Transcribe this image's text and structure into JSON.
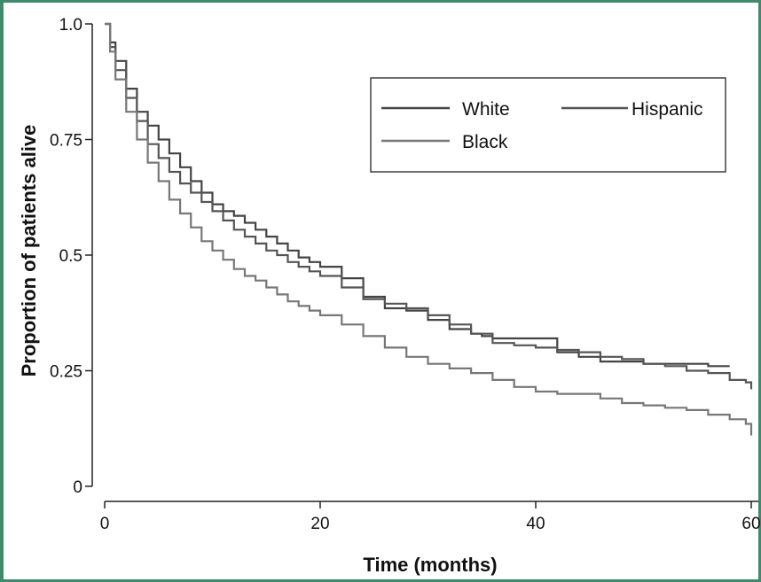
{
  "chart_data": {
    "type": "line",
    "step": true,
    "title": "",
    "xlabel": "Time (months)",
    "ylabel": "Proportion of patients alive",
    "xlim": [
      0,
      60
    ],
    "ylim": [
      0,
      1.0
    ],
    "xticks": [
      0,
      20,
      40,
      60
    ],
    "xtick_labels": [
      "0",
      "20",
      "40",
      "60"
    ],
    "yticks": [
      0,
      0.25,
      0.5,
      0.75,
      1.0
    ],
    "ytick_labels": [
      "0",
      "0.25",
      "0.5",
      "0.75",
      "1.0"
    ],
    "grid": false,
    "legend": {
      "position": "top-right",
      "columns": 2
    },
    "series": [
      {
        "name": "White",
        "color": "#444444",
        "x": [
          0,
          0.5,
          1,
          2,
          3,
          4,
          5,
          6,
          7,
          8,
          9,
          10,
          11,
          12,
          13,
          14,
          15,
          16,
          17,
          18,
          19,
          20,
          22,
          24,
          26,
          28,
          30,
          32,
          34,
          35,
          36,
          38,
          40,
          42,
          44,
          46,
          48,
          50,
          52,
          54,
          56,
          58
        ],
        "y": [
          1.0,
          0.96,
          0.92,
          0.86,
          0.81,
          0.78,
          0.75,
          0.72,
          0.69,
          0.66,
          0.635,
          0.61,
          0.595,
          0.585,
          0.57,
          0.555,
          0.54,
          0.525,
          0.51,
          0.495,
          0.485,
          0.475,
          0.45,
          0.41,
          0.385,
          0.38,
          0.36,
          0.34,
          0.33,
          0.325,
          0.32,
          0.32,
          0.32,
          0.29,
          0.28,
          0.27,
          0.27,
          0.265,
          0.265,
          0.265,
          0.26,
          0.26
        ]
      },
      {
        "name": "Hispanic",
        "color": "#555555",
        "x": [
          0,
          0.5,
          1,
          2,
          3,
          4,
          5,
          6,
          7,
          8,
          9,
          10,
          11,
          12,
          13,
          14,
          15,
          16,
          17,
          18,
          19,
          20,
          22,
          24,
          26,
          28,
          30,
          32,
          34,
          36,
          38,
          40,
          42,
          44,
          46,
          48,
          50,
          52,
          54,
          56,
          58,
          59.5,
          60
        ],
        "y": [
          1.0,
          0.95,
          0.9,
          0.84,
          0.79,
          0.74,
          0.71,
          0.68,
          0.655,
          0.635,
          0.615,
          0.595,
          0.575,
          0.555,
          0.54,
          0.525,
          0.51,
          0.5,
          0.485,
          0.475,
          0.465,
          0.455,
          0.43,
          0.405,
          0.395,
          0.385,
          0.37,
          0.35,
          0.33,
          0.31,
          0.305,
          0.3,
          0.295,
          0.29,
          0.28,
          0.275,
          0.265,
          0.26,
          0.25,
          0.245,
          0.23,
          0.225,
          0.21
        ]
      },
      {
        "name": "Black",
        "color": "#777777",
        "x": [
          0,
          0.5,
          1,
          2,
          3,
          4,
          5,
          6,
          7,
          8,
          9,
          10,
          11,
          12,
          13,
          14,
          15,
          16,
          17,
          18,
          19,
          20,
          22,
          24,
          26,
          28,
          30,
          32,
          34,
          36,
          38,
          40,
          42,
          44,
          46,
          48,
          50,
          52,
          54,
          56,
          58,
          59.5,
          60
        ],
        "y": [
          1.0,
          0.94,
          0.88,
          0.81,
          0.75,
          0.7,
          0.66,
          0.62,
          0.59,
          0.56,
          0.53,
          0.51,
          0.49,
          0.47,
          0.455,
          0.445,
          0.43,
          0.415,
          0.4,
          0.39,
          0.38,
          0.37,
          0.35,
          0.325,
          0.3,
          0.28,
          0.265,
          0.255,
          0.245,
          0.23,
          0.215,
          0.205,
          0.2,
          0.2,
          0.19,
          0.18,
          0.175,
          0.17,
          0.165,
          0.155,
          0.145,
          0.135,
          0.11
        ]
      }
    ]
  }
}
